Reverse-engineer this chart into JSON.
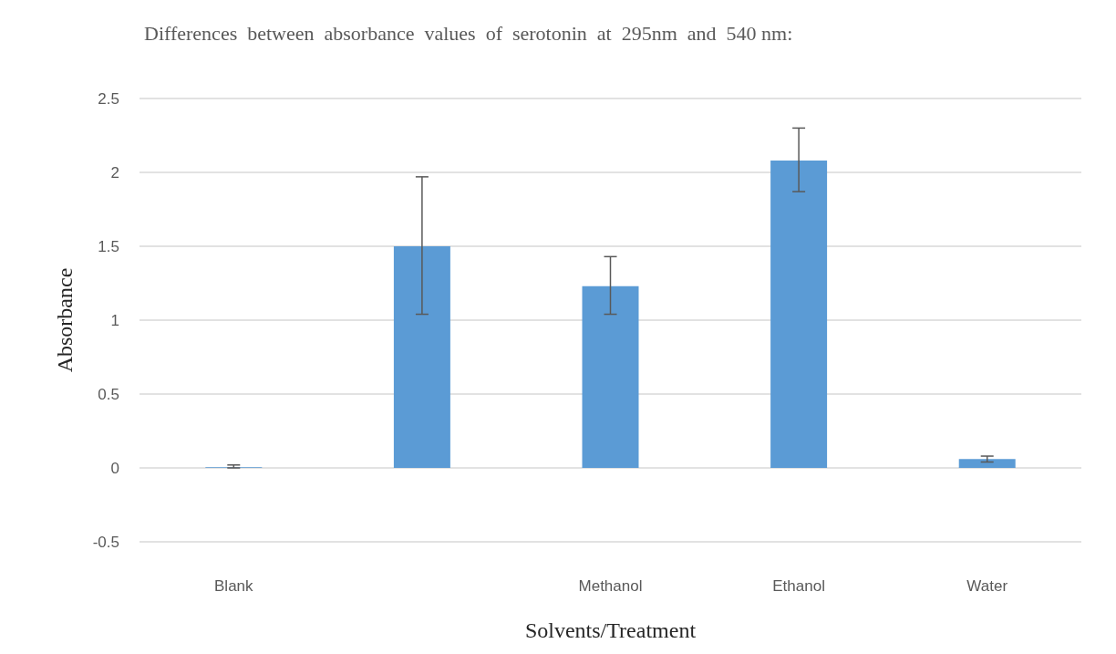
{
  "chart_data": {
    "type": "bar",
    "title": "Differences  between  absorbance  values  of  serotonin  at  295nm  and  540 nm:",
    "xlabel": "Solvents/Treatment",
    "ylabel": "Absorbance",
    "categories": [
      "Blank",
      null,
      "Methanol",
      "Ethanol",
      "Water"
    ],
    "values": [
      0.005,
      1.5,
      1.23,
      2.08,
      0.06
    ],
    "errors": [
      [
        0.0,
        0.02
      ],
      [
        1.04,
        1.97
      ],
      [
        1.04,
        1.43
      ],
      [
        1.87,
        2.3
      ],
      [
        0.04,
        0.08
      ]
    ],
    "color": "#5b9bd5",
    "ylim": [
      -0.5,
      2.5
    ],
    "yticks": [
      -0.5,
      0,
      0.5,
      1,
      1.5,
      2,
      2.5
    ],
    "grid": "y"
  }
}
